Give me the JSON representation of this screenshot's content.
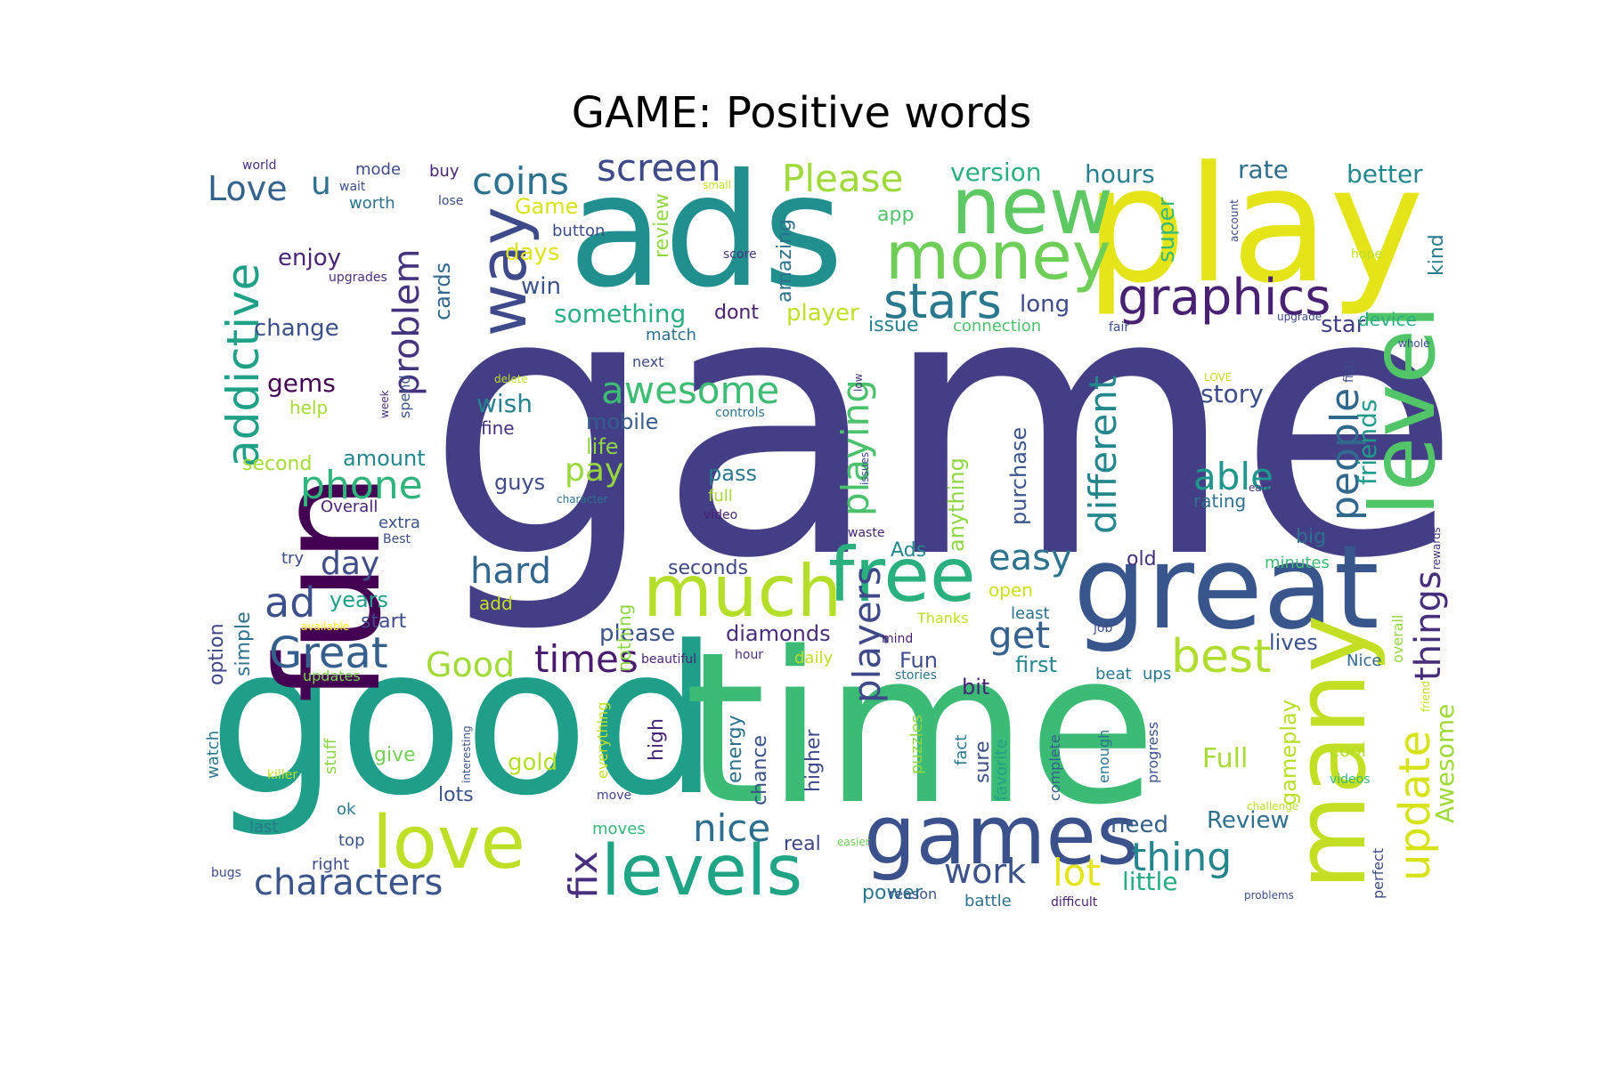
{
  "title": "GAME: Positive words",
  "words": [
    {
      "text": "game",
      "size": 1.0,
      "color": "#433e85"
    },
    {
      "text": "good",
      "size": 0.82,
      "color": "#1f9e89"
    },
    {
      "text": "time",
      "size": 0.8,
      "color": "#3bbb75"
    },
    {
      "text": "ads",
      "size": 0.58,
      "color": "#218f8d"
    },
    {
      "text": "play",
      "size": 0.55,
      "color": "#e4e419"
    },
    {
      "text": "fun",
      "size": 0.55,
      "color": "#440154"
    },
    {
      "text": "great",
      "size": 0.42,
      "color": "#39568c"
    },
    {
      "text": "many",
      "size": 0.4,
      "color": "#c2df23"
    },
    {
      "text": "level",
      "size": 0.32,
      "color": "#52c569"
    },
    {
      "text": "new",
      "size": 0.3,
      "color": "#5ec962"
    },
    {
      "text": "games",
      "size": 0.3,
      "color": "#3b518b"
    },
    {
      "text": "money",
      "size": 0.26,
      "color": "#6ece58"
    },
    {
      "text": "much",
      "size": 0.28,
      "color": "#b5de2b"
    },
    {
      "text": "free",
      "size": 0.28,
      "color": "#2ab07f"
    },
    {
      "text": "love",
      "size": 0.27,
      "color": "#bddf26"
    },
    {
      "text": "levels",
      "size": 0.26,
      "color": "#20a486"
    },
    {
      "text": "way",
      "size": 0.24,
      "color": "#3e4a89"
    },
    {
      "text": "addictive",
      "size": 0.2,
      "color": "#1fa188"
    },
    {
      "text": "graphics",
      "size": 0.2,
      "color": "#482173"
    },
    {
      "text": "stars",
      "size": 0.2,
      "color": "#2a788e"
    },
    {
      "text": "best",
      "size": 0.18,
      "color": "#b0dd2f"
    },
    {
      "text": "update",
      "size": 0.18,
      "color": "#d8e219"
    },
    {
      "text": "people",
      "size": 0.18,
      "color": "#31688e"
    },
    {
      "text": "problem",
      "size": 0.16,
      "color": "#46337f"
    },
    {
      "text": "screen",
      "size": 0.15,
      "color": "#3e4989"
    },
    {
      "text": "coins",
      "size": 0.15,
      "color": "#2c728e"
    },
    {
      "text": "Please",
      "size": 0.15,
      "color": "#9fda3a"
    },
    {
      "text": "awesome",
      "size": 0.15,
      "color": "#3dbc74"
    },
    {
      "text": "phone",
      "size": 0.16,
      "color": "#2fb47c"
    },
    {
      "text": "Great",
      "size": 0.16,
      "color": "#355f8d"
    },
    {
      "text": "fix",
      "size": 0.15,
      "color": "#472f7d"
    },
    {
      "text": "thing",
      "size": 0.15,
      "color": "#25858e"
    },
    {
      "text": "characters",
      "size": 0.15,
      "color": "#3a548c"
    },
    {
      "text": "nice",
      "size": 0.15,
      "color": "#2e6e8e"
    },
    {
      "text": "different",
      "size": 0.15,
      "color": "#24878e"
    },
    {
      "text": "playing",
      "size": 0.15,
      "color": "#4ac16d"
    },
    {
      "text": "players",
      "size": 0.15,
      "color": "#3f4889"
    },
    {
      "text": "able",
      "size": 0.14,
      "color": "#1f968b"
    },
    {
      "text": "easy",
      "size": 0.14,
      "color": "#2c738e"
    },
    {
      "text": "get",
      "size": 0.14,
      "color": "#34618d"
    },
    {
      "text": "things",
      "size": 0.14,
      "color": "#472e7c"
    },
    {
      "text": "Love",
      "size": 0.14,
      "color": "#33638d"
    },
    {
      "text": "ad",
      "size": 0.14,
      "color": "#3c4f8a"
    },
    {
      "text": "hard",
      "size": 0.14,
      "color": "#31668e"
    },
    {
      "text": "times",
      "size": 0.14,
      "color": "#481b6d"
    },
    {
      "text": "Good",
      "size": 0.14,
      "color": "#a2da37"
    },
    {
      "text": "lot",
      "size": 0.14,
      "color": "#e5e419"
    },
    {
      "text": "work",
      "size": 0.13,
      "color": "#3b528b"
    },
    {
      "text": "pay",
      "size": 0.13,
      "color": "#98d83e"
    },
    {
      "text": "day",
      "size": 0.12,
      "color": "#3e4c8a"
    },
    {
      "text": "friends",
      "size": 0.1,
      "color": "#1e9b8a"
    },
    {
      "text": "Awesome",
      "size": 0.1,
      "color": "#a0da39"
    },
    {
      "text": "gameplay",
      "size": 0.09,
      "color": "#b8de29"
    },
    {
      "text": "Full",
      "size": 0.1,
      "color": "#a8db34"
    },
    {
      "text": "Review",
      "size": 0.09,
      "color": "#2d708e"
    },
    {
      "text": "need",
      "size": 0.09,
      "color": "#355e8d"
    },
    {
      "text": "little",
      "size": 0.09,
      "color": "#25ac82"
    },
    {
      "text": "story",
      "size": 0.09,
      "color": "#3d4d8a"
    },
    {
      "text": "kind",
      "size": 0.07,
      "color": "#287c8e"
    },
    {
      "text": "rate",
      "size": 0.09,
      "color": "#2e6f8e"
    },
    {
      "text": "better",
      "size": 0.09,
      "color": "#23888e"
    },
    {
      "text": "hours",
      "size": 0.09,
      "color": "#27808e"
    },
    {
      "text": "version",
      "size": 0.09,
      "color": "#2ab07f"
    },
    {
      "text": "super",
      "size": 0.08,
      "color": "#3aba76"
    },
    {
      "text": "app",
      "size": 0.07,
      "color": "#50c46a"
    },
    {
      "text": "long",
      "size": 0.08,
      "color": "#3e4a89"
    },
    {
      "text": "issue",
      "size": 0.07,
      "color": "#26818e"
    },
    {
      "text": "connection",
      "size": 0.06,
      "color": "#4cc26c"
    },
    {
      "text": "star",
      "size": 0.08,
      "color": "#424086"
    },
    {
      "text": "device",
      "size": 0.07,
      "color": "#29af7f"
    },
    {
      "text": "review",
      "size": 0.07,
      "color": "#90d743"
    },
    {
      "text": "amazing",
      "size": 0.07,
      "color": "#2c718e"
    },
    {
      "text": "dont",
      "size": 0.07,
      "color": "#481f70"
    },
    {
      "text": "player",
      "size": 0.08,
      "color": "#c0df25"
    },
    {
      "text": "something",
      "size": 0.1,
      "color": "#28ae80"
    },
    {
      "text": "win",
      "size": 0.08,
      "color": "#3b528b"
    },
    {
      "text": "days",
      "size": 0.08,
      "color": "#dde318"
    },
    {
      "text": "Game",
      "size": 0.08,
      "color": "#dae319"
    },
    {
      "text": "cards",
      "size": 0.08,
      "color": "#31688e"
    },
    {
      "text": "enjoy",
      "size": 0.09,
      "color": "#482576"
    },
    {
      "text": "change",
      "size": 0.09,
      "color": "#3c508b"
    },
    {
      "text": "gems",
      "size": 0.09,
      "color": "#440154"
    },
    {
      "text": "help",
      "size": 0.07,
      "color": "#a5db36"
    },
    {
      "text": "second",
      "size": 0.08,
      "color": "#a5db36"
    },
    {
      "text": "amount",
      "size": 0.08,
      "color": "#24868e"
    },
    {
      "text": "wish",
      "size": 0.09,
      "color": "#26828e"
    },
    {
      "text": "fine",
      "size": 0.06,
      "color": "#46337f"
    },
    {
      "text": "mobile",
      "size": 0.08,
      "color": "#355e8d"
    },
    {
      "text": "life",
      "size": 0.08,
      "color": "#90d743"
    },
    {
      "text": "guys",
      "size": 0.08,
      "color": "#3e4a89"
    },
    {
      "text": "pass",
      "size": 0.08,
      "color": "#2a788e"
    },
    {
      "text": "full",
      "size": 0.06,
      "color": "#a8db34"
    },
    {
      "text": "video",
      "size": 0.05,
      "color": "#482173"
    },
    {
      "text": "purchase",
      "size": 0.08,
      "color": "#3a548c"
    },
    {
      "text": "anything",
      "size": 0.08,
      "color": "#8ed645"
    },
    {
      "text": "Ads",
      "size": 0.07,
      "color": "#24868e"
    },
    {
      "text": "rating",
      "size": 0.07,
      "color": "#2c718e"
    },
    {
      "text": "big",
      "size": 0.07,
      "color": "#2d708e"
    },
    {
      "text": "old",
      "size": 0.07,
      "color": "#46307e"
    },
    {
      "text": "minutes",
      "size": 0.06,
      "color": "#3dbc74"
    },
    {
      "text": "seconds",
      "size": 0.07,
      "color": "#404688"
    },
    {
      "text": "years",
      "size": 0.08,
      "color": "#1f9f88"
    },
    {
      "text": "start",
      "size": 0.07,
      "color": "#3e4a89"
    },
    {
      "text": "option",
      "size": 0.07,
      "color": "#3f4788"
    },
    {
      "text": "simple",
      "size": 0.07,
      "color": "#2d718e"
    },
    {
      "text": "diamonds",
      "size": 0.08,
      "color": "#472d7b"
    },
    {
      "text": "please",
      "size": 0.08,
      "color": "#3b528b"
    },
    {
      "text": "open",
      "size": 0.07,
      "color": "#cae11f"
    },
    {
      "text": "least",
      "size": 0.06,
      "color": "#2d708e"
    },
    {
      "text": "first",
      "size": 0.07,
      "color": "#24868e"
    },
    {
      "text": "lives",
      "size": 0.07,
      "color": "#3b528b"
    },
    {
      "text": "Fun",
      "size": 0.07,
      "color": "#3e4c8a"
    },
    {
      "text": "bit",
      "size": 0.07,
      "color": "#482576"
    },
    {
      "text": "sure",
      "size": 0.07,
      "color": "#3c4f8a"
    },
    {
      "text": "higher",
      "size": 0.07,
      "color": "#3e4989"
    },
    {
      "text": "energy",
      "size": 0.07,
      "color": "#2d718e"
    },
    {
      "text": "chance",
      "size": 0.07,
      "color": "#3b528b"
    },
    {
      "text": "high",
      "size": 0.07,
      "color": "#482677"
    },
    {
      "text": "nothing",
      "size": 0.07,
      "color": "#8bd646"
    },
    {
      "text": "add",
      "size": 0.06,
      "color": "#c5e021"
    },
    {
      "text": "gold",
      "size": 0.07,
      "color": "#b5de2b"
    },
    {
      "text": "give",
      "size": 0.07,
      "color": "#74d055"
    },
    {
      "text": "lots",
      "size": 0.07,
      "color": "#3b528b"
    },
    {
      "text": "moves",
      "size": 0.06,
      "color": "#35b779"
    },
    {
      "text": "real",
      "size": 0.07,
      "color": "#404588"
    },
    {
      "text": "power",
      "size": 0.07,
      "color": "#2a788e"
    },
    {
      "text": "fact",
      "size": 0.06,
      "color": "#2a788e"
    },
    {
      "text": "favorite",
      "size": 0.06,
      "color": "#1fa187"
    },
    {
      "text": "complete",
      "size": 0.05,
      "color": "#355f8d"
    },
    {
      "text": "enough",
      "size": 0.06,
      "color": "#2c728e"
    },
    {
      "text": "progress",
      "size": 0.06,
      "color": "#3b528b"
    },
    {
      "text": "cool",
      "size": 0.06,
      "color": "#b5de2b"
    },
    {
      "text": "videos",
      "size": 0.05,
      "color": "#35b779"
    },
    {
      "text": "perfect",
      "size": 0.05,
      "color": "#3e4a89"
    },
    {
      "text": "Nice",
      "size": 0.06,
      "color": "#31688e"
    },
    {
      "text": "overall",
      "size": 0.05,
      "color": "#93d741"
    },
    {
      "text": "ups",
      "size": 0.06,
      "color": "#2a788e"
    },
    {
      "text": "beat",
      "size": 0.06,
      "color": "#2a788e"
    },
    {
      "text": "Thanks",
      "size": 0.05,
      "color": "#bddf26"
    },
    {
      "text": "mind",
      "size": 0.04,
      "color": "#482173"
    },
    {
      "text": "job",
      "size": 0.04,
      "color": "#3e4c8a"
    },
    {
      "text": "puzzles",
      "size": 0.05,
      "color": "#90d743"
    },
    {
      "text": "stories",
      "size": 0.04,
      "color": "#2c728e"
    },
    {
      "text": "daily",
      "size": 0.06,
      "color": "#bddf26"
    },
    {
      "text": "hour",
      "size": 0.04,
      "color": "#46327e"
    },
    {
      "text": "beautiful",
      "size": 0.04,
      "color": "#482576"
    },
    {
      "text": "reason",
      "size": 0.05,
      "color": "#3b528b"
    },
    {
      "text": "battle",
      "size": 0.06,
      "color": "#2c718e"
    },
    {
      "text": "difficult",
      "size": 0.05,
      "color": "#482576"
    },
    {
      "text": "problems",
      "size": 0.04,
      "color": "#3e4a89"
    },
    {
      "text": "challenge",
      "size": 0.04,
      "color": "#b8de29"
    },
    {
      "text": "easier",
      "size": 0.04,
      "color": "#6ece58"
    },
    {
      "text": "top",
      "size": 0.05,
      "color": "#3b528b"
    },
    {
      "text": "right",
      "size": 0.06,
      "color": "#3e4a89"
    },
    {
      "text": "ok",
      "size": 0.05,
      "color": "#2a788e"
    },
    {
      "text": "watch",
      "size": 0.05,
      "color": "#2a788e"
    },
    {
      "text": "stuff",
      "size": 0.05,
      "color": "#8bd646"
    },
    {
      "text": "killer",
      "size": 0.04,
      "color": "#bddf26"
    },
    {
      "text": "last",
      "size": 0.05,
      "color": "#2a788e"
    },
    {
      "text": "bugs",
      "size": 0.04,
      "color": "#3e4a89"
    },
    {
      "text": "interesting",
      "size": 0.04,
      "color": "#3b528b"
    },
    {
      "text": "everything",
      "size": 0.05,
      "color": "#c5e021"
    },
    {
      "text": "move",
      "size": 0.04,
      "color": "#404588"
    },
    {
      "text": "updates",
      "size": 0.05,
      "color": "#7ad151"
    },
    {
      "text": "available",
      "size": 0.04,
      "color": "#fde725"
    },
    {
      "text": "Best",
      "size": 0.04,
      "color": "#3e4a89"
    },
    {
      "text": "extra",
      "size": 0.05,
      "color": "#3b528b"
    },
    {
      "text": "Overall",
      "size": 0.05,
      "color": "#482576"
    },
    {
      "text": "try",
      "size": 0.05,
      "color": "#3e4a89"
    },
    {
      "text": "spend",
      "size": 0.05,
      "color": "#3b528b"
    },
    {
      "text": "week",
      "size": 0.03,
      "color": "#46327e"
    },
    {
      "text": "delete",
      "size": 0.03,
      "color": "#bddf26"
    },
    {
      "text": "next",
      "size": 0.04,
      "color": "#3e4a89"
    },
    {
      "text": "match",
      "size": 0.05,
      "color": "#2c728e"
    },
    {
      "text": "controls",
      "size": 0.04,
      "color": "#2c728e"
    },
    {
      "text": "low",
      "size": 0.04,
      "color": "#46327e"
    },
    {
      "text": "character",
      "size": 0.04,
      "color": "#2c728e"
    },
    {
      "text": "issues",
      "size": 0.04,
      "color": "#3e4a89"
    },
    {
      "text": "waste",
      "size": 0.04,
      "color": "#482576"
    },
    {
      "text": "score",
      "size": 0.03,
      "color": "#46327e"
    },
    {
      "text": "small",
      "size": 0.03,
      "color": "#bddf26"
    },
    {
      "text": "button",
      "size": 0.05,
      "color": "#3e4a89"
    },
    {
      "text": "lose",
      "size": 0.04,
      "color": "#3e4a89"
    },
    {
      "text": "world",
      "size": 0.04,
      "color": "#46327e"
    },
    {
      "text": "wait",
      "size": 0.04,
      "color": "#3e4a89"
    },
    {
      "text": "mode",
      "size": 0.05,
      "color": "#3e4a89"
    },
    {
      "text": "buy",
      "size": 0.05,
      "color": "#482576"
    },
    {
      "text": "worth",
      "size": 0.05,
      "color": "#2c728e"
    },
    {
      "text": "upgrades",
      "size": 0.04,
      "color": "#46327e"
    },
    {
      "text": "u",
      "size": 0.12,
      "color": "#2c728e"
    },
    {
      "text": "hope",
      "size": 0.04,
      "color": "#bddf26"
    },
    {
      "text": "account",
      "size": 0.03,
      "color": "#3e4a89"
    },
    {
      "text": "upgrade",
      "size": 0.03,
      "color": "#3e4a89"
    },
    {
      "text": "whole",
      "size": 0.03,
      "color": "#3e4a89"
    },
    {
      "text": "LOVE",
      "size": 0.03,
      "color": "#bddf26"
    },
    {
      "text": "fish",
      "size": 0.04,
      "color": "#3e4a89"
    },
    {
      "text": "fair",
      "size": 0.04,
      "color": "#3e4a89"
    },
    {
      "text": "earn",
      "size": 0.04,
      "color": "#46327e"
    },
    {
      "text": "rewards",
      "size": 0.03,
      "color": "#46327e"
    },
    {
      "text": "friend",
      "size": 0.03,
      "color": "#bddf26"
    }
  ]
}
